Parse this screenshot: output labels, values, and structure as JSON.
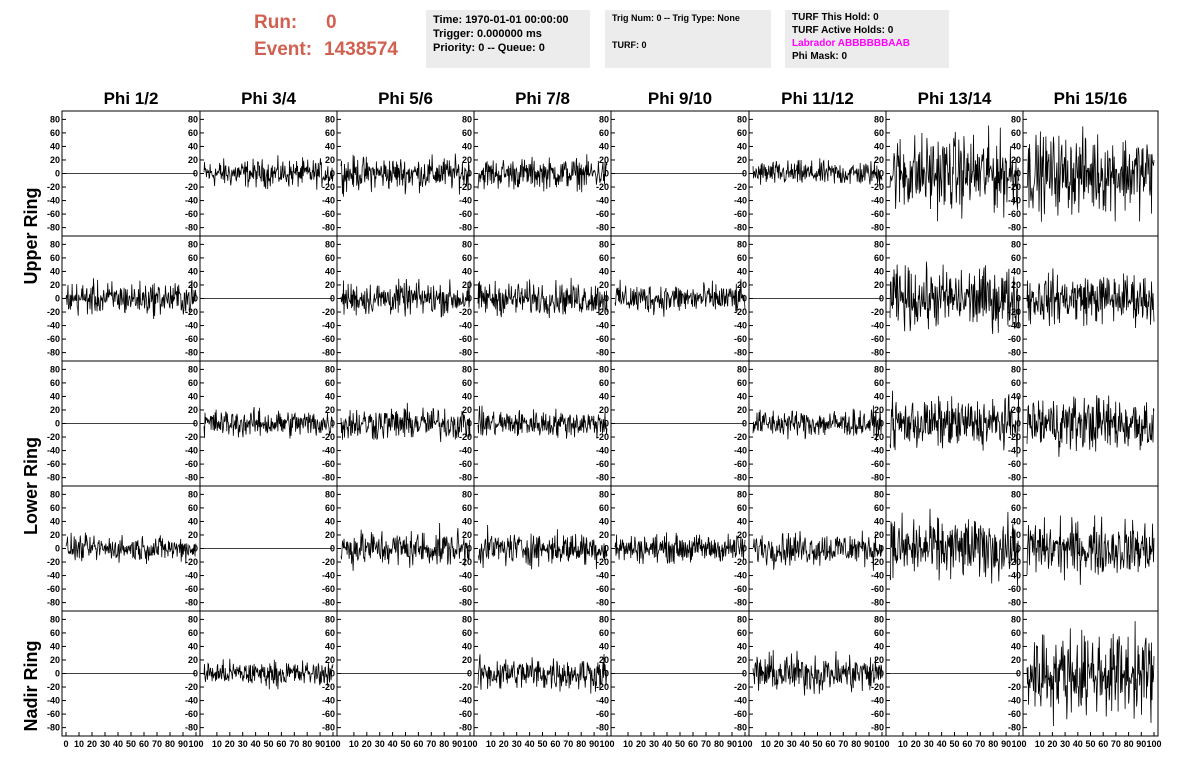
{
  "header": {
    "run_label": "Run:",
    "run_value": "0",
    "event_label": "Event:",
    "event_value": "1438574",
    "time_line": "Time: 1970-01-01 00:00:00",
    "trigger_line": "Trigger: 0.000000 ms",
    "priority_line": "Priority: 0 -- Queue: 0",
    "trig_line": "Trig Num: 0 -- Trig Type: None",
    "turf_line": "TURF: 0",
    "turf_hold_line": "TURF This Hold: 0",
    "turf_active_line": "TURF Active Holds: 0",
    "labrador_line": "Labrador ABBBBBBAAB",
    "phimask_line": "Phi Mask: 0",
    "labrador_color": "#ff00ff",
    "run_color": "#d06050"
  },
  "chart_data": {
    "type": "line",
    "columns": [
      "Phi 1/2",
      "Phi 3/4",
      "Phi 5/6",
      "Phi 7/8",
      "Phi 9/10",
      "Phi 11/12",
      "Phi 13/14",
      "Phi 15/16"
    ],
    "ring_labels": [
      "Upper Ring",
      "Lower Ring",
      "Nadir Ring"
    ],
    "panel_rows": 5,
    "ylim": [
      -85,
      85
    ],
    "xlim": [
      0,
      100
    ],
    "yticks": [
      -80,
      -60,
      -40,
      -20,
      0,
      20,
      40,
      60,
      80
    ],
    "xticks": [
      0,
      10,
      20,
      30,
      40,
      50,
      60,
      70,
      80,
      90,
      100
    ],
    "samples_per_trace": 256,
    "amplitude_rms": [
      [
        0,
        10,
        12,
        11,
        0,
        9,
        28,
        28
      ],
      [
        12,
        0,
        12,
        12,
        11,
        0,
        22,
        18
      ],
      [
        0,
        10,
        12,
        10,
        0,
        10,
        18,
        20
      ],
      [
        9,
        0,
        13,
        12,
        10,
        12,
        22,
        20
      ],
      [
        0,
        9,
        0,
        12,
        0,
        14,
        0,
        30
      ]
    ]
  }
}
